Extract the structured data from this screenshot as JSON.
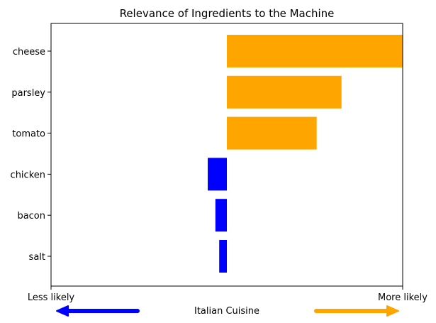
{
  "chart_data": {
    "type": "bar",
    "orientation": "horizontal",
    "title": "Relevance of Ingredients to the Machine",
    "categories": [
      "cheese",
      "parsley",
      "tomato",
      "chicken",
      "bacon",
      "salt"
    ],
    "values": [
      0.92,
      0.6,
      0.47,
      -0.1,
      -0.06,
      -0.04
    ],
    "xlim": [
      -0.92,
      0.92
    ],
    "colors": {
      "positive": "#ffa500",
      "negative": "#0000ff"
    },
    "grid": false,
    "xtick_labels": {
      "left": "Less likely",
      "right": "More likely"
    },
    "xlabel": "Italian Cuisine",
    "arrows": [
      {
        "direction": "left",
        "color": "#0000ff"
      },
      {
        "direction": "right",
        "color": "#ffa500"
      }
    ]
  }
}
